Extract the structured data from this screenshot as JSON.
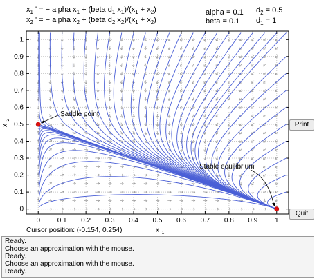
{
  "equations": {
    "eq1": {
      "lhs": "x",
      "lhs_sub": "1",
      "rhs_a": " ' = − alpha x",
      "rhs_a_sub": "1",
      "rhs_b": " + (beta d",
      "rhs_b_sub": "1",
      "rhs_c": " x",
      "rhs_c_sub": "1",
      "rhs_d": ")/(x",
      "rhs_d_sub": "1",
      "rhs_e": " + x",
      "rhs_e_sub": "2",
      "rhs_f": ")"
    },
    "eq2": {
      "lhs": "x",
      "lhs_sub": "2",
      "rhs_a": " ' = − alpha x",
      "rhs_a_sub": "2",
      "rhs_b": " + (beta d",
      "rhs_b_sub": "2",
      "rhs_c": " x",
      "rhs_c_sub": "2",
      "rhs_d": ")/(x",
      "rhs_d_sub": "1",
      "rhs_e": " + x",
      "rhs_e_sub": "2",
      "rhs_f": ")"
    }
  },
  "params": {
    "alpha": "alpha = 0.1",
    "beta": "beta = 0.1",
    "d2_label": "d",
    "d2_sub": "2",
    "d2_val": " = 0.5",
    "d1_label": "d",
    "d1_sub": "1",
    "d1_val": " = 1"
  },
  "buttons": {
    "print": "Print",
    "quit": "Quit"
  },
  "cursor_position": "Cursor position:  (-0.154, 0.254)",
  "status_lines": [
    "Ready.",
    "Choose an approximation with the mouse.",
    "Ready.",
    "Choose an approximation with the mouse.",
    "Ready."
  ],
  "plot": {
    "xlabel": "x",
    "xlabel_sub": "1",
    "ylabel": "x",
    "ylabel_sub": "2",
    "xlim": [
      -0.05,
      1.05
    ],
    "ylim": [
      -0.03,
      1.05
    ],
    "xticks": [
      "0",
      "0.1",
      "0.2",
      "0.3",
      "0.4",
      "0.5",
      "0.6",
      "0.7",
      "0.8",
      "0.9",
      "1"
    ],
    "yticks": [
      "0",
      "0.1",
      "0.2",
      "0.3",
      "0.4",
      "0.5",
      "0.6",
      "0.7",
      "0.8",
      "0.9",
      "1"
    ],
    "annotations": {
      "saddle": "Saddle point",
      "stable": "Stable equilibrium"
    },
    "equilibria": [
      {
        "name": "saddle",
        "x": 0,
        "y": 0.5
      },
      {
        "name": "stable",
        "x": 1,
        "y": 0
      }
    ],
    "colors": {
      "trajectory": "#4a5fd6",
      "arrow": "#9a9a9a",
      "point": "#e01010"
    }
  }
}
